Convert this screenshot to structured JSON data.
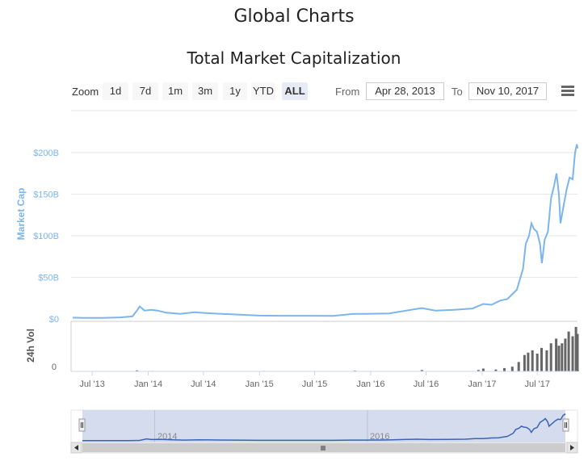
{
  "page_title": "Global Charts",
  "chart_title": "Total Market Capitalization",
  "toolbar": {
    "zoom_label": "Zoom",
    "zoom_buttons": [
      "1d",
      "7d",
      "1m",
      "3m",
      "1y",
      "YTD",
      "ALL"
    ],
    "active_zoom": "ALL",
    "from_label": "From",
    "from_value": "Apr 28, 2013",
    "to_label": "To",
    "to_value": "Nov 10, 2017",
    "menu_icon": "hamburger-menu-icon"
  },
  "navigator": {
    "year_labels": [
      "2014",
      "2016"
    ]
  },
  "chart_data": {
    "type": "line",
    "colors": {
      "market_cap": "#7cb5ec",
      "volume": "#666666",
      "navigator_fill": "#ccd6eb",
      "navigator_line": "#3a63b8"
    },
    "x_ticks": [
      "Jul '13",
      "Jan '14",
      "Jul '14",
      "Jan '15",
      "Jul '15",
      "Jan '16",
      "Jul '16",
      "Jan '17",
      "Jul '17"
    ],
    "xlim": [
      "2013-04-28",
      "2017-11-10"
    ],
    "series": [
      {
        "name": "Market Cap",
        "ylabel": "Market Cap",
        "y_ticks": [
          "$0",
          "$50B",
          "$100B",
          "$150B",
          "$200B"
        ],
        "ylim": [
          0,
          200
        ],
        "unit": "B",
        "points": [
          [
            "2013-04-28",
            1.6
          ],
          [
            "2013-06-01",
            1.3
          ],
          [
            "2013-08-01",
            1.2
          ],
          [
            "2013-10-01",
            1.8
          ],
          [
            "2013-11-10",
            3.0
          ],
          [
            "2013-11-25",
            10
          ],
          [
            "2013-12-04",
            15
          ],
          [
            "2013-12-20",
            10
          ],
          [
            "2014-01-10",
            11
          ],
          [
            "2014-02-01",
            10
          ],
          [
            "2014-03-01",
            7.5
          ],
          [
            "2014-04-15",
            6
          ],
          [
            "2014-06-01",
            8
          ],
          [
            "2014-08-01",
            6.5
          ],
          [
            "2014-10-01",
            5.5
          ],
          [
            "2015-01-01",
            4
          ],
          [
            "2015-03-01",
            3.8
          ],
          [
            "2015-06-01",
            3.8
          ],
          [
            "2015-09-01",
            3.6
          ],
          [
            "2015-11-05",
            6
          ],
          [
            "2015-12-15",
            6
          ],
          [
            "2016-03-01",
            6.6
          ],
          [
            "2016-06-17",
            13
          ],
          [
            "2016-08-01",
            10
          ],
          [
            "2016-10-01",
            11
          ],
          [
            "2016-12-01",
            12.5
          ],
          [
            "2017-01-04",
            18
          ],
          [
            "2017-02-01",
            17
          ],
          [
            "2017-03-01",
            22
          ],
          [
            "2017-03-25",
            24
          ],
          [
            "2017-04-25",
            35
          ],
          [
            "2017-05-15",
            60
          ],
          [
            "2017-05-24",
            90
          ],
          [
            "2017-06-04",
            100
          ],
          [
            "2017-06-12",
            115
          ],
          [
            "2017-06-20",
            108
          ],
          [
            "2017-06-30",
            105
          ],
          [
            "2017-07-10",
            90
          ],
          [
            "2017-07-16",
            67
          ],
          [
            "2017-07-25",
            95
          ],
          [
            "2017-08-05",
            105
          ],
          [
            "2017-08-15",
            145
          ],
          [
            "2017-08-25",
            160
          ],
          [
            "2017-09-02",
            175
          ],
          [
            "2017-09-10",
            150
          ],
          [
            "2017-09-15",
            115
          ],
          [
            "2017-09-25",
            135
          ],
          [
            "2017-10-05",
            155
          ],
          [
            "2017-10-15",
            170
          ],
          [
            "2017-10-25",
            168
          ],
          [
            "2017-11-02",
            200
          ],
          [
            "2017-11-08",
            210
          ],
          [
            "2017-11-10",
            205
          ]
        ]
      },
      {
        "name": "24h Vol",
        "ylabel": "24h Vol",
        "y_ticks": [
          "0"
        ],
        "bars": [
          [
            "2013-11-25",
            0.02
          ],
          [
            "2014-01-15",
            0.01
          ],
          [
            "2015-01-15",
            0.01
          ],
          [
            "2015-11-10",
            0.015
          ],
          [
            "2016-06-17",
            0.03
          ],
          [
            "2016-12-20",
            0.03
          ],
          [
            "2017-01-05",
            0.06
          ],
          [
            "2017-02-15",
            0.04
          ],
          [
            "2017-03-15",
            0.07
          ],
          [
            "2017-04-10",
            0.1
          ],
          [
            "2017-05-01",
            0.2
          ],
          [
            "2017-05-20",
            0.35
          ],
          [
            "2017-06-01",
            0.4
          ],
          [
            "2017-06-15",
            0.45
          ],
          [
            "2017-07-01",
            0.38
          ],
          [
            "2017-07-15",
            0.5
          ],
          [
            "2017-08-01",
            0.45
          ],
          [
            "2017-08-15",
            0.6
          ],
          [
            "2017-09-01",
            0.7
          ],
          [
            "2017-09-10",
            0.55
          ],
          [
            "2017-09-20",
            0.6
          ],
          [
            "2017-10-01",
            0.7
          ],
          [
            "2017-10-12",
            0.85
          ],
          [
            "2017-10-25",
            0.75
          ],
          [
            "2017-11-05",
            0.95
          ],
          [
            "2017-11-10",
            0.8
          ]
        ]
      }
    ],
    "grid": true
  }
}
